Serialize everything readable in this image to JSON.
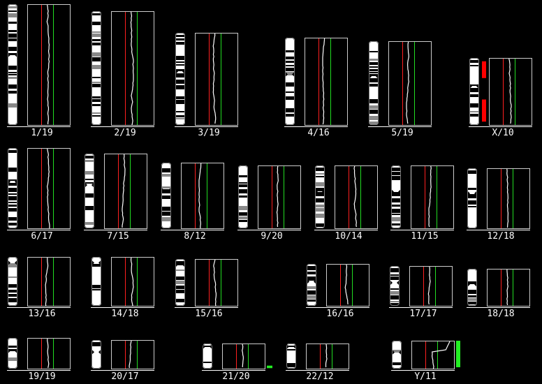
{
  "colors": {
    "background": "#000000",
    "frame": "#cccccc",
    "baseline": "#ffffff",
    "red_line": "#ff2020",
    "green_line": "#22dd22",
    "profile": "#ffffff",
    "loss_bar": "#ff0000",
    "gain_bar": "#22ee22",
    "band_dark": "#000000",
    "band_gray": "#888888",
    "band_light": "#ffffff"
  },
  "chromosomes": [
    {
      "id": "1",
      "label": "1/19"
    },
    {
      "id": "2",
      "label": "2/19"
    },
    {
      "id": "3",
      "label": "3/19"
    },
    {
      "id": "4",
      "label": "4/16"
    },
    {
      "id": "5",
      "label": "5/19"
    },
    {
      "id": "X",
      "label": "X/10",
      "loss_regions": [
        [
          0.05,
          0.3
        ],
        [
          0.62,
          0.95
        ]
      ]
    },
    {
      "id": "6",
      "label": "6/17"
    },
    {
      "id": "7",
      "label": "7/15"
    },
    {
      "id": "8",
      "label": "8/12"
    },
    {
      "id": "9",
      "label": "9/20"
    },
    {
      "id": "10",
      "label": "10/14"
    },
    {
      "id": "11",
      "label": "11/15"
    },
    {
      "id": "12",
      "label": "12/18"
    },
    {
      "id": "13",
      "label": "13/16"
    },
    {
      "id": "14",
      "label": "14/18"
    },
    {
      "id": "15",
      "label": "15/16"
    },
    {
      "id": "16",
      "label": "16/16"
    },
    {
      "id": "17",
      "label": "17/17"
    },
    {
      "id": "18",
      "label": "18/18"
    },
    {
      "id": "19",
      "label": "19/19"
    },
    {
      "id": "20",
      "label": "20/17"
    },
    {
      "id": "21",
      "label": "21/20",
      "gain_regions": [
        [
          0.88,
          0.98
        ]
      ]
    },
    {
      "id": "22",
      "label": "22/12"
    },
    {
      "id": "Y",
      "label": "Y/11",
      "gain_regions": [
        [
          0.0,
          0.95
        ]
      ]
    }
  ]
}
